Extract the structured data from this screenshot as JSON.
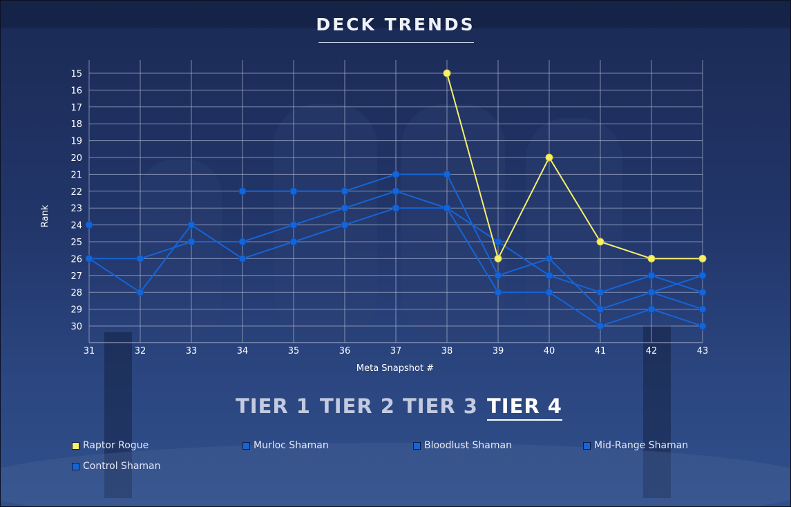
{
  "page": {
    "title": "DECK TRENDS"
  },
  "tiers": [
    {
      "label": "TIER 1",
      "active": false
    },
    {
      "label": "TIER 2",
      "active": false
    },
    {
      "label": "TIER 3",
      "active": false
    },
    {
      "label": "TIER 4",
      "active": true
    }
  ],
  "colors": {
    "highlight": "#f7f06b",
    "series_blue": "#1565d8",
    "grid": "#aab4d0"
  },
  "chart_data": {
    "type": "line",
    "title": "DECK TRENDS",
    "xlabel": "Meta Snapshot #",
    "ylabel": "Rank",
    "x": [
      31,
      32,
      33,
      34,
      35,
      36,
      37,
      38,
      39,
      40,
      41,
      42,
      43
    ],
    "xlim": [
      31,
      43
    ],
    "ylim": [
      15,
      31
    ],
    "y_inverted": true,
    "y_ticks": [
      15,
      16,
      17,
      18,
      19,
      20,
      21,
      22,
      23,
      24,
      25,
      26,
      27,
      28,
      29,
      30
    ],
    "grid": true,
    "legend_position": "bottom",
    "series": [
      {
        "name": "Raptor Rogue",
        "color": "#f7f06b",
        "values": [
          null,
          null,
          null,
          null,
          null,
          null,
          null,
          15,
          26,
          20,
          25,
          26,
          26
        ]
      },
      {
        "name": "Murloc Shaman",
        "color": "#1565d8",
        "values": [
          null,
          null,
          null,
          22,
          22,
          22,
          21,
          21,
          27,
          26,
          29,
          28,
          27
        ]
      },
      {
        "name": "Bloodlust Shaman",
        "color": "#1565d8",
        "values": [
          26,
          26,
          25,
          25,
          24,
          23,
          22,
          23,
          25,
          27,
          28,
          27,
          28
        ]
      },
      {
        "name": "Mid-Range Shaman",
        "color": "#1565d8",
        "values": [
          26,
          28,
          24,
          26,
          25,
          24,
          23,
          23,
          28,
          28,
          30,
          29,
          30
        ]
      },
      {
        "name": "Control Shaman",
        "color": "#1565d8",
        "values": [
          24,
          null,
          null,
          null,
          null,
          null,
          null,
          null,
          null,
          null,
          null,
          28,
          29
        ]
      }
    ]
  }
}
